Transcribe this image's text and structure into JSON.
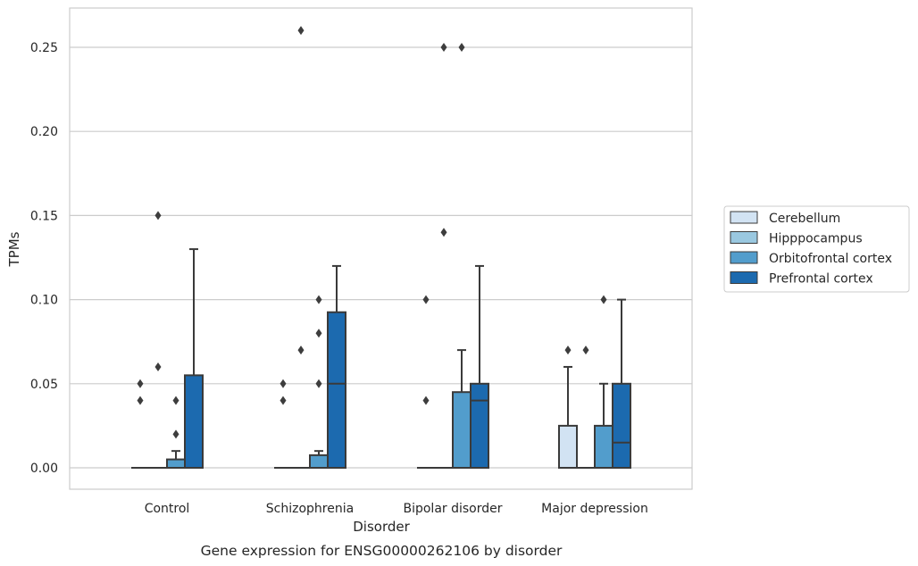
{
  "chart_data": {
    "type": "box",
    "title": "",
    "caption": "Gene expression for ENSG00000262106 by disorder",
    "xlabel": "Disorder",
    "ylabel": "TPMs",
    "ylim": [
      -0.0125,
      0.2735
    ],
    "yticks": [
      0.0,
      0.05,
      0.1,
      0.15,
      0.2,
      0.25
    ],
    "ytick_labels": [
      "0.00",
      "0.05",
      "0.10",
      "0.15",
      "0.20",
      "0.25"
    ],
    "grid": "horizontal",
    "legend_position": "right",
    "categories": [
      "Control",
      "Schizophrenia",
      "Bipolar disorder",
      "Major depression"
    ],
    "series": [
      {
        "name": "Cerebellum",
        "color": "#d2e3f3",
        "boxes": [
          {
            "q1": 0,
            "median": 0,
            "q3": 0,
            "whisker_low": 0,
            "whisker_high": 0,
            "outliers": [
              0.04,
              0.05
            ]
          },
          {
            "q1": 0,
            "median": 0,
            "q3": 0,
            "whisker_low": 0,
            "whisker_high": 0,
            "outliers": [
              0.04,
              0.05
            ]
          },
          {
            "q1": 0,
            "median": 0,
            "q3": 0,
            "whisker_low": 0,
            "whisker_high": 0,
            "outliers": [
              0.04,
              0.1
            ]
          },
          {
            "q1": 0,
            "median": 0,
            "q3": 0.025,
            "whisker_low": 0,
            "whisker_high": 0.06,
            "outliers": [
              0.07
            ]
          }
        ]
      },
      {
        "name": "Hipppocampus",
        "color": "#9ac8e0",
        "boxes": [
          {
            "q1": 0,
            "median": 0,
            "q3": 0,
            "whisker_low": 0,
            "whisker_high": 0,
            "outliers": [
              0.06,
              0.15
            ]
          },
          {
            "q1": 0,
            "median": 0,
            "q3": 0,
            "whisker_low": 0,
            "whisker_high": 0,
            "outliers": [
              0.07,
              0.26
            ]
          },
          {
            "q1": 0,
            "median": 0,
            "q3": 0,
            "whisker_low": 0,
            "whisker_high": 0,
            "outliers": [
              0.14,
              0.25
            ]
          },
          {
            "q1": 0,
            "median": 0,
            "q3": 0,
            "whisker_low": 0,
            "whisker_high": 0,
            "outliers": [
              0.07
            ]
          }
        ]
      },
      {
        "name": "Orbitofrontal cortex",
        "color": "#529dcc",
        "boxes": [
          {
            "q1": 0,
            "median": 0,
            "q3": 0.005,
            "whisker_low": 0,
            "whisker_high": 0.01,
            "outliers": [
              0.02,
              0.04
            ]
          },
          {
            "q1": 0,
            "median": 0,
            "q3": 0.0075,
            "whisker_low": 0,
            "whisker_high": 0.01,
            "outliers": [
              0.05,
              0.08,
              0.1
            ]
          },
          {
            "q1": 0,
            "median": 0,
            "q3": 0.045,
            "whisker_low": 0,
            "whisker_high": 0.07,
            "outliers": [
              0.25
            ]
          },
          {
            "q1": 0,
            "median": 0,
            "q3": 0.025,
            "whisker_low": 0,
            "whisker_high": 0.05,
            "outliers": [
              0.1
            ]
          }
        ]
      },
      {
        "name": "Prefrontal cortex",
        "color": "#1c6aaf",
        "boxes": [
          {
            "q1": 0,
            "median": 0,
            "q3": 0.055,
            "whisker_low": 0,
            "whisker_high": 0.13,
            "outliers": []
          },
          {
            "q1": 0,
            "median": 0.05,
            "q3": 0.0925,
            "whisker_low": 0,
            "whisker_high": 0.12,
            "outliers": []
          },
          {
            "q1": 0,
            "median": 0.04,
            "q3": 0.05,
            "whisker_low": 0,
            "whisker_high": 0.12,
            "outliers": []
          },
          {
            "q1": 0,
            "median": 0.015,
            "q3": 0.05,
            "whisker_low": 0,
            "whisker_high": 0.1,
            "outliers": []
          }
        ]
      }
    ]
  }
}
